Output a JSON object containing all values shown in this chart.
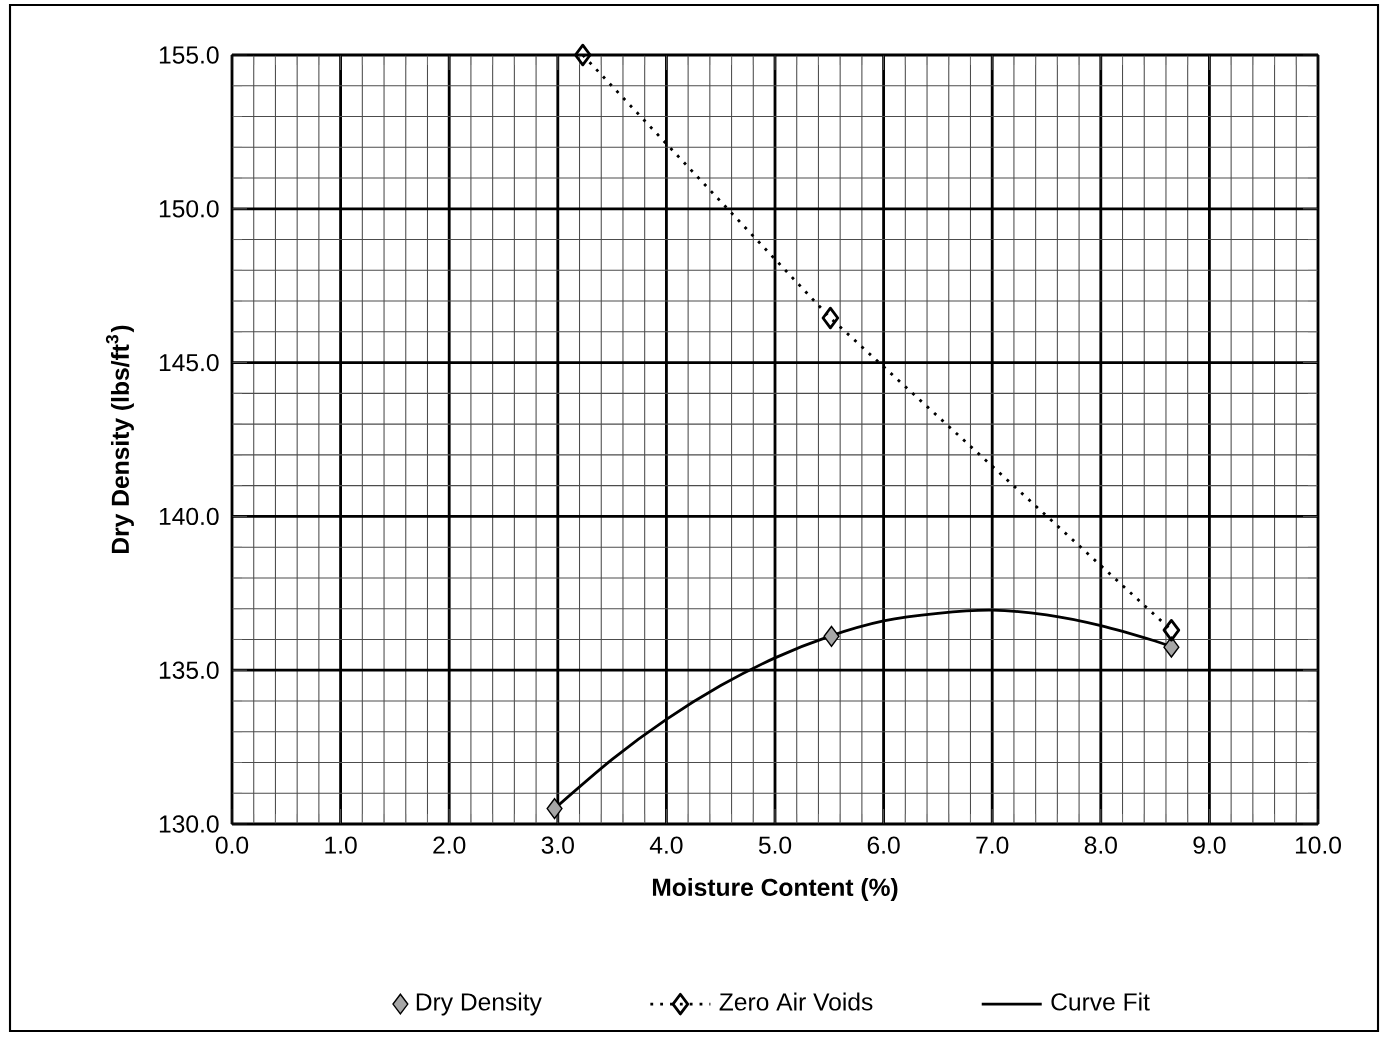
{
  "chart_data": {
    "type": "scatter",
    "xlabel": "Moisture Content (%)",
    "ylabel": "Dry Density (lbs/ft$^{3}$)",
    "xlim": [
      0,
      10
    ],
    "ylim": [
      130,
      155
    ],
    "xticks": [
      {
        "value": 0,
        "label": "0.0"
      },
      {
        "value": 1,
        "label": "1.0"
      },
      {
        "value": 2,
        "label": "2.0"
      },
      {
        "value": 3,
        "label": "3.0"
      },
      {
        "value": 4,
        "label": "4.0"
      },
      {
        "value": 5,
        "label": "5.0"
      },
      {
        "value": 6,
        "label": "6.0"
      },
      {
        "value": 7,
        "label": "7.0"
      },
      {
        "value": 8,
        "label": "8.0"
      },
      {
        "value": 9,
        "label": "9.0"
      },
      {
        "value": 10,
        "label": "10.0"
      }
    ],
    "yticks": [
      {
        "value": 130,
        "label": "130.0"
      },
      {
        "value": 135,
        "label": "135.0"
      },
      {
        "value": 140,
        "label": "140.0"
      },
      {
        "value": 145,
        "label": "145.0"
      },
      {
        "value": 150,
        "label": "150.0"
      },
      {
        "value": 155,
        "label": "155.0"
      }
    ],
    "grid": true,
    "legend": "bottom",
    "series": [
      {
        "name": "Dry Density",
        "marker": "diamond",
        "color": "#000000",
        "x": [
          2.97,
          5.52,
          8.65
        ],
        "values": [
          130.5,
          136.1,
          135.75
        ]
      },
      {
        "name": "Zero Air Voids",
        "type": "line",
        "marker": "diamond",
        "line_style": "dotted",
        "color": "#000000",
        "x": [
          3.23,
          5.51,
          8.65
        ],
        "values": [
          155.0,
          146.45,
          136.3
        ]
      },
      {
        "name": "Curve Fit",
        "type": "line",
        "marker": "none",
        "line_style": "solid",
        "color": "#000000",
        "x": [
          2.97,
          3.5,
          4.0,
          4.5,
          5.0,
          5.5,
          6.0,
          6.5,
          7.0,
          7.5,
          8.0,
          8.5,
          8.65
        ],
        "values": [
          130.5,
          132.1,
          133.4,
          134.5,
          135.4,
          136.1,
          136.6,
          136.85,
          136.95,
          136.8,
          136.45,
          135.95,
          135.75
        ]
      }
    ]
  }
}
